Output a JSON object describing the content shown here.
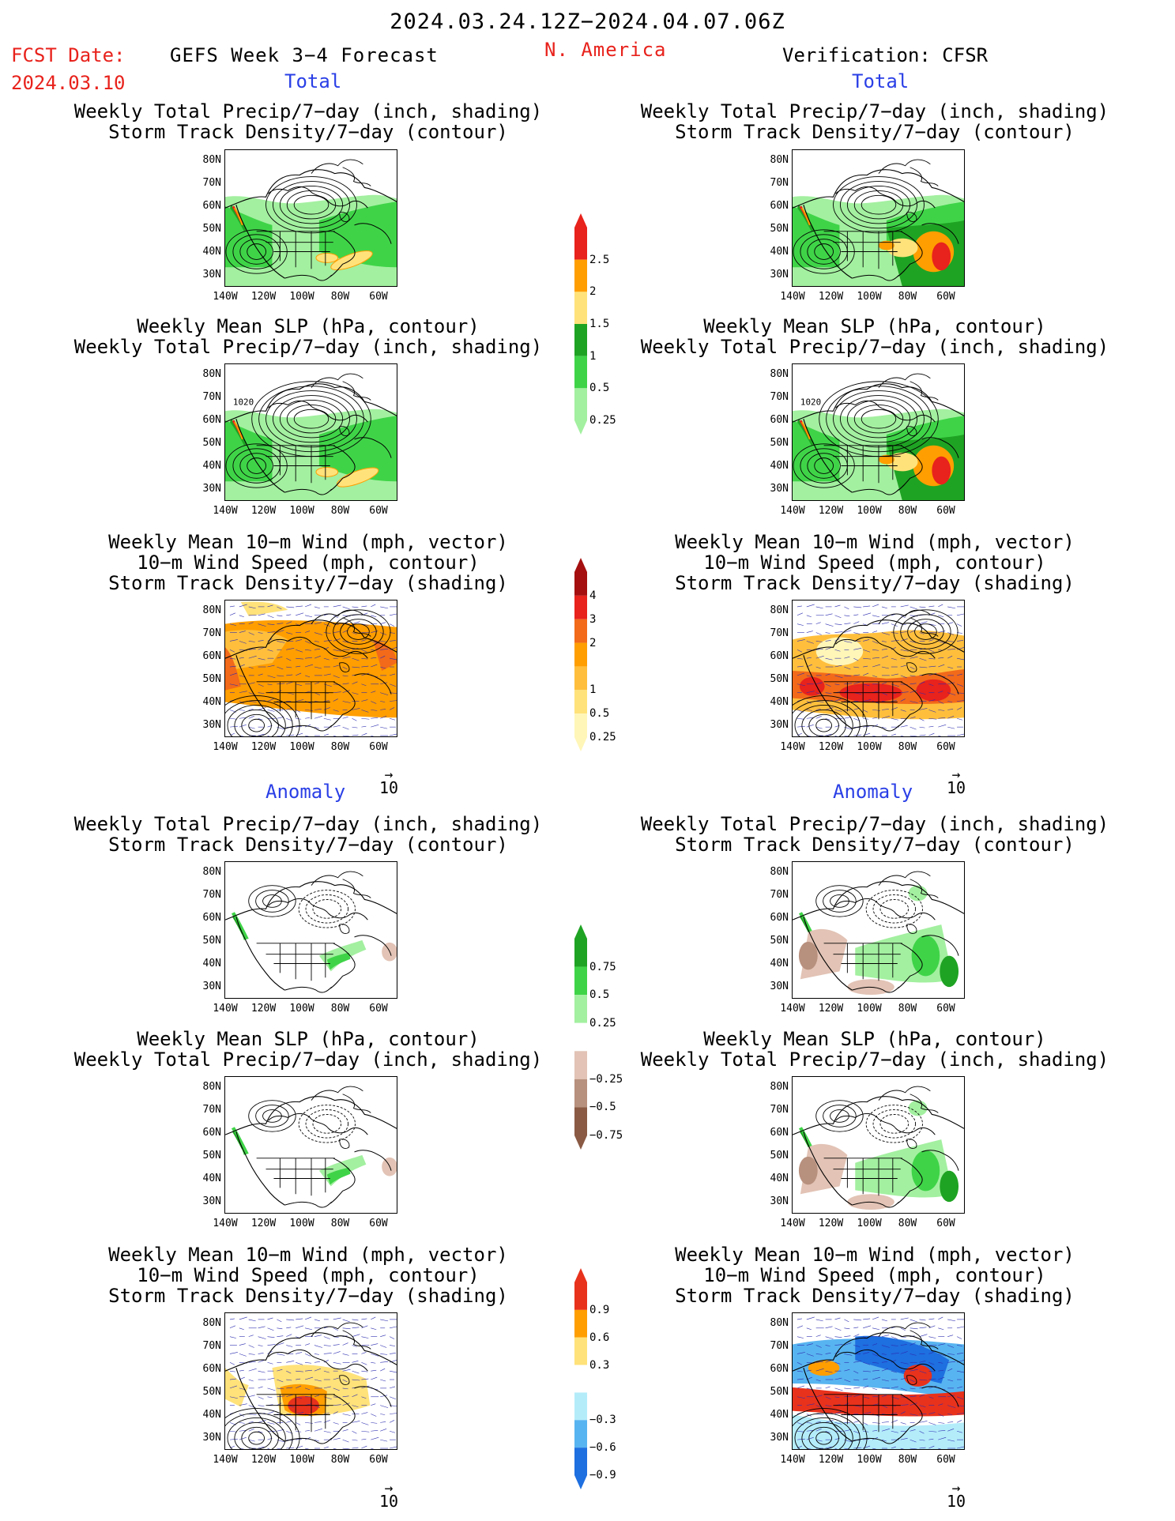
{
  "header": {
    "date_range": "2024.03.24.12Z−2024.04.07.06Z",
    "fcst_label": "FCST Date:",
    "fcst_date": "2024.03.10",
    "model_title": "GEFS Week 3−4 Forecast",
    "region": "N. America",
    "verification": "Verification: CFSR"
  },
  "sections": {
    "total": "Total",
    "anomaly": "Anomaly"
  },
  "panel_titles": {
    "precip_track": [
      "Weekly Total Precip/7−day (inch, shading)",
      "Storm Track Density/7−day (contour)"
    ],
    "slp_precip": [
      "Weekly Mean SLP (hPa, contour)",
      "Weekly Total Precip/7−day (inch, shading)"
    ],
    "wind_track": [
      "Weekly Mean 10−m Wind (mph, vector)",
      "10−m Wind Speed (mph, contour)",
      "Storm Track Density/7−day (shading)"
    ]
  },
  "axes": {
    "lat_labels": [
      "80N",
      "70N",
      "60N",
      "50N",
      "40N",
      "30N"
    ],
    "lon_labels": [
      "140W",
      "120W",
      "100W",
      "80W",
      "60W"
    ]
  },
  "vector_ref": "10",
  "map_annotations": {
    "slp_1020": "1020"
  },
  "colorbars": [
    {
      "id": "precip-total",
      "labels": [
        "2.5",
        "2",
        "1.5",
        "1",
        "0.5",
        "0.25"
      ],
      "colors": [
        "#e8221c",
        "#ff9e00",
        "#ffe27a",
        "#1fa323",
        "#3fd448",
        "#a3f0a0"
      ]
    },
    {
      "id": "track-total",
      "labels": [
        "4",
        "3",
        "2",
        "1",
        "0.5",
        "0.25"
      ],
      "colors": [
        "#a50f0f",
        "#e8221c",
        "#f26a1a",
        "#ff9e00",
        "#ffbf3c",
        "#ffe27a",
        "#fff6b8"
      ]
    },
    {
      "id": "precip-anom",
      "labels": [
        "0.75",
        "0.5",
        "0.25",
        "−0.25",
        "−0.5",
        "−0.75"
      ],
      "colors": [
        "#1fa323",
        "#3fd448",
        "#a3f0a0",
        "#ffffff",
        "#e2c3b5",
        "#b8907e",
        "#8a5a44"
      ]
    },
    {
      "id": "track-anom",
      "labels": [
        "0.9",
        "0.6",
        "0.3",
        "−0.3",
        "−0.6",
        "−0.9"
      ],
      "colors": [
        "#e8321c",
        "#ff9e00",
        "#ffe27a",
        "#ffffff",
        "#b4ecfa",
        "#58b4f0",
        "#1e6fe0"
      ]
    }
  ]
}
